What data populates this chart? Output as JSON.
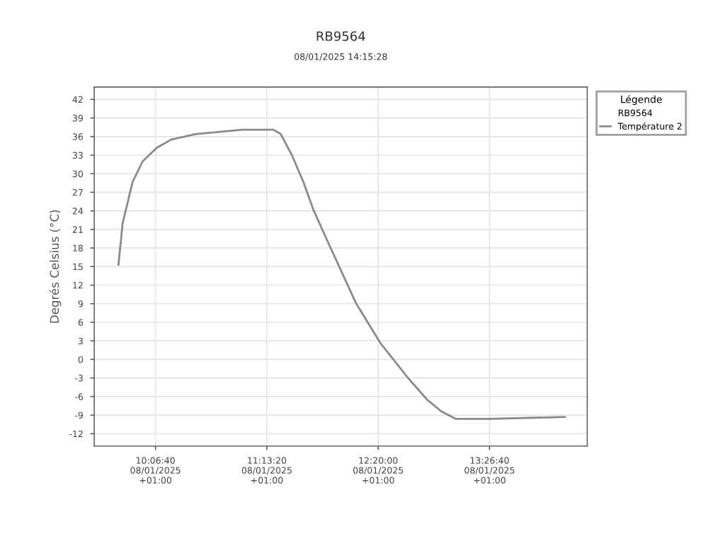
{
  "chart_data": {
    "type": "line",
    "title": "RB9564",
    "subtitle": "08/01/2025 14:15:28",
    "ylabel": "Degrés Celsius (°C)",
    "legend_title": "Légende",
    "annotations": [
      "RB9564"
    ],
    "x": [
      "2025-01-08T09:44:30",
      "2025-01-08T09:47:00",
      "2025-01-08T09:53:00",
      "2025-01-08T09:59:00",
      "2025-01-08T10:07:30",
      "2025-01-08T10:16:00",
      "2025-01-08T10:30:30",
      "2025-01-08T10:58:40",
      "2025-01-08T11:17:20",
      "2025-01-08T11:21:40",
      "2025-01-08T11:28:20",
      "2025-01-08T11:35:10",
      "2025-01-08T11:41:10",
      "2025-01-08T11:49:40",
      "2025-01-08T12:06:40",
      "2025-01-08T12:21:10",
      "2025-01-08T12:38:10",
      "2025-01-08T12:49:20",
      "2025-01-08T12:57:50",
      "2025-01-08T13:06:20",
      "2025-01-08T13:26:00",
      "2025-01-08T14:11:50"
    ],
    "series": [
      {
        "name": "Température 2",
        "color": "#8a8a8a",
        "values": [
          15.3,
          22,
          28.7,
          32,
          34.2,
          35.5,
          36.4,
          37.1,
          37.1,
          36.4,
          33,
          28.7,
          24.2,
          19.1,
          9.1,
          2.7,
          -3.1,
          -6.5,
          -8.4,
          -9.6,
          -9.6,
          -9.3
        ]
      }
    ],
    "xlim": [
      "2025-01-08T09:30:00",
      "2025-01-08T14:25:10"
    ],
    "xticks": [
      {
        "value": "2025-01-08T10:06:40",
        "label": "10:06:40\n08/01/2025\n+01:00"
      },
      {
        "value": "2025-01-08T11:13:20",
        "label": "11:13:20\n08/01/2025\n+01:00"
      },
      {
        "value": "2025-01-08T12:20:00",
        "label": "12:20:00\n08/01/2025\n+01:00"
      },
      {
        "value": "2025-01-08T13:26:40",
        "label": "13:26:40\n08/01/2025\n+01:00"
      }
    ],
    "ylim": [
      -14,
      44
    ],
    "yticks": [
      -12,
      -9,
      -6,
      -3,
      0,
      3,
      6,
      9,
      12,
      15,
      18,
      21,
      24,
      27,
      30,
      33,
      36,
      39,
      42
    ],
    "grid": true,
    "legend": "right",
    "marker": "none",
    "line_style": "solid"
  }
}
